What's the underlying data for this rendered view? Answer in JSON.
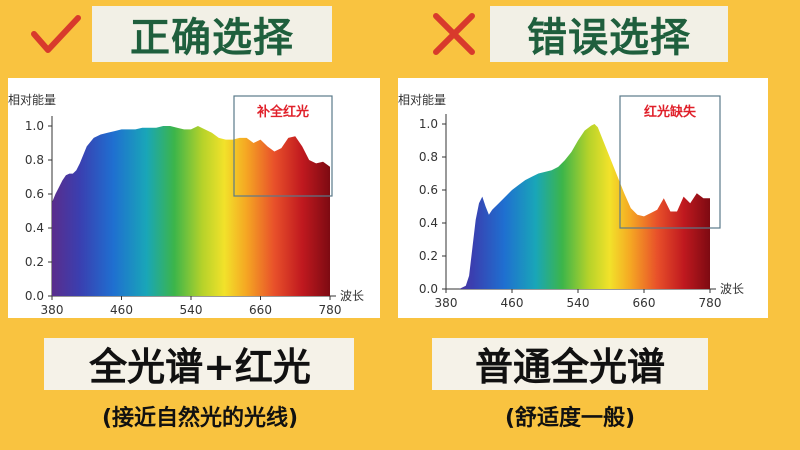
{
  "left_panel": {
    "heading": "正确选择",
    "caption_main": "全光谱+红光",
    "caption_sub": "(接近自然光的光线)"
  },
  "right_panel": {
    "heading": "错误选择",
    "caption_main": "普通全光谱",
    "caption_sub": "(舒适度一般)"
  },
  "colors": {
    "background": "#f9c340",
    "heading_text": "#1f5f3d",
    "check_mark": "#d83a2c",
    "cross_mark": "#d83a2c",
    "annotation_text": "#e0202a",
    "annotation_box": "#5a7a8a"
  },
  "icons": {
    "left": "check-mark-icon",
    "right": "cross-mark-icon"
  },
  "chart_data": [
    {
      "type": "area",
      "ylabel": "相对能量",
      "xlabel": "波长",
      "xlim": [
        380,
        780
      ],
      "ylim": [
        0,
        1.0
      ],
      "xticks": [
        "380",
        "460",
        "540",
        "660",
        "780"
      ],
      "yticks": [
        "0.0",
        "0.2",
        "0.4",
        "0.6",
        "0.8",
        "1.0"
      ],
      "annotation": {
        "label": "补全红光",
        "x_range": [
          620,
          780
        ]
      },
      "x": [
        380,
        385,
        390,
        395,
        400,
        405,
        410,
        415,
        420,
        430,
        440,
        450,
        460,
        470,
        480,
        490,
        500,
        510,
        520,
        530,
        540,
        550,
        560,
        570,
        580,
        590,
        600,
        610,
        620,
        630,
        640,
        650,
        660,
        670,
        680,
        690,
        700,
        710,
        720,
        730,
        740,
        750,
        760,
        770,
        780
      ],
      "y": [
        0.55,
        0.6,
        0.64,
        0.68,
        0.71,
        0.72,
        0.72,
        0.74,
        0.78,
        0.88,
        0.93,
        0.95,
        0.96,
        0.97,
        0.98,
        0.98,
        0.98,
        0.99,
        0.99,
        0.99,
        1.0,
        1.0,
        0.99,
        0.98,
        0.98,
        1.0,
        0.98,
        0.96,
        0.93,
        0.92,
        0.92,
        0.93,
        0.93,
        0.9,
        0.92,
        0.88,
        0.85,
        0.87,
        0.93,
        0.94,
        0.88,
        0.8,
        0.78,
        0.79,
        0.76
      ]
    },
    {
      "type": "area",
      "ylabel": "相对能量",
      "xlabel": "波长",
      "xlim": [
        380,
        780
      ],
      "ylim": [
        0,
        1.0
      ],
      "xticks": [
        "380",
        "460",
        "540",
        "660",
        "780"
      ],
      "yticks": [
        "0.0",
        "0.2",
        "0.4",
        "0.6",
        "0.8",
        "1.0"
      ],
      "annotation": {
        "label": "红光缺失",
        "x_range": [
          620,
          780
        ]
      },
      "x": [
        380,
        390,
        400,
        410,
        415,
        420,
        425,
        430,
        435,
        440,
        445,
        450,
        455,
        460,
        470,
        480,
        490,
        500,
        510,
        520,
        530,
        540,
        550,
        560,
        570,
        580,
        590,
        600,
        605,
        610,
        620,
        630,
        640,
        650,
        660,
        670,
        680,
        690,
        700,
        710,
        720,
        730,
        740,
        750,
        760,
        770,
        780
      ],
      "y": [
        0.0,
        0.0,
        0.0,
        0.02,
        0.08,
        0.25,
        0.42,
        0.52,
        0.56,
        0.5,
        0.45,
        0.48,
        0.5,
        0.52,
        0.56,
        0.6,
        0.63,
        0.66,
        0.68,
        0.7,
        0.71,
        0.72,
        0.74,
        0.78,
        0.83,
        0.9,
        0.96,
        0.99,
        1.0,
        0.98,
        0.88,
        0.78,
        0.68,
        0.58,
        0.49,
        0.45,
        0.44,
        0.46,
        0.48,
        0.55,
        0.47,
        0.47,
        0.56,
        0.52,
        0.58,
        0.55,
        0.55
      ]
    }
  ]
}
